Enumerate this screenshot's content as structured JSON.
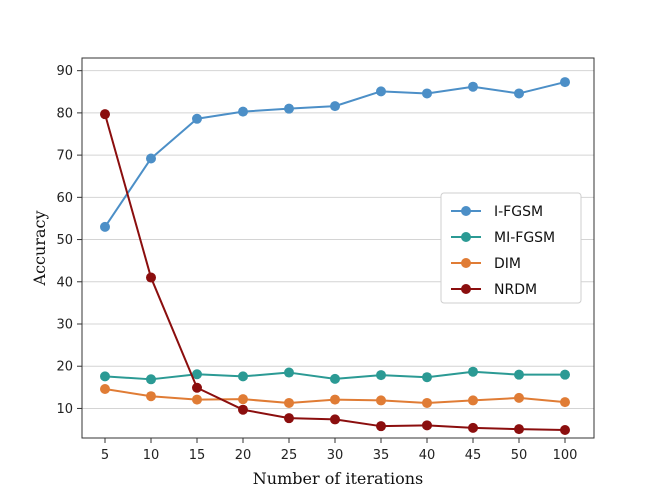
{
  "chart_data": {
    "type": "line",
    "title": "",
    "xlabel": "Number of iterations",
    "ylabel": "Accuracy",
    "categories": [
      "5",
      "10",
      "15",
      "20",
      "25",
      "30",
      "35",
      "40",
      "45",
      "50",
      "100"
    ],
    "ylim": [
      3,
      93
    ],
    "yticks": [
      10,
      20,
      30,
      40,
      50,
      60,
      70,
      80,
      90
    ],
    "grid": "horizontal",
    "legend_position": "center-right",
    "series": [
      {
        "name": "I-FGSM",
        "color": "#4c8fc7",
        "values": [
          53.0,
          69.2,
          78.6,
          80.3,
          81.0,
          81.6,
          85.1,
          84.6,
          86.2,
          84.6,
          87.3
        ]
      },
      {
        "name": "MI-FGSM",
        "color": "#2b9a94",
        "values": [
          17.6,
          16.9,
          18.1,
          17.6,
          18.5,
          17.0,
          17.9,
          17.4,
          18.7,
          18.0,
          18.0
        ]
      },
      {
        "name": "DIM",
        "color": "#e07c35",
        "values": [
          14.6,
          12.9,
          12.1,
          12.2,
          11.3,
          12.1,
          11.9,
          11.3,
          11.9,
          12.5,
          11.5
        ]
      },
      {
        "name": "NRDM",
        "color": "#8b0e0e",
        "values": [
          79.7,
          41.0,
          14.9,
          9.7,
          7.7,
          7.4,
          5.8,
          6.0,
          5.4,
          5.1,
          4.9
        ]
      }
    ]
  }
}
